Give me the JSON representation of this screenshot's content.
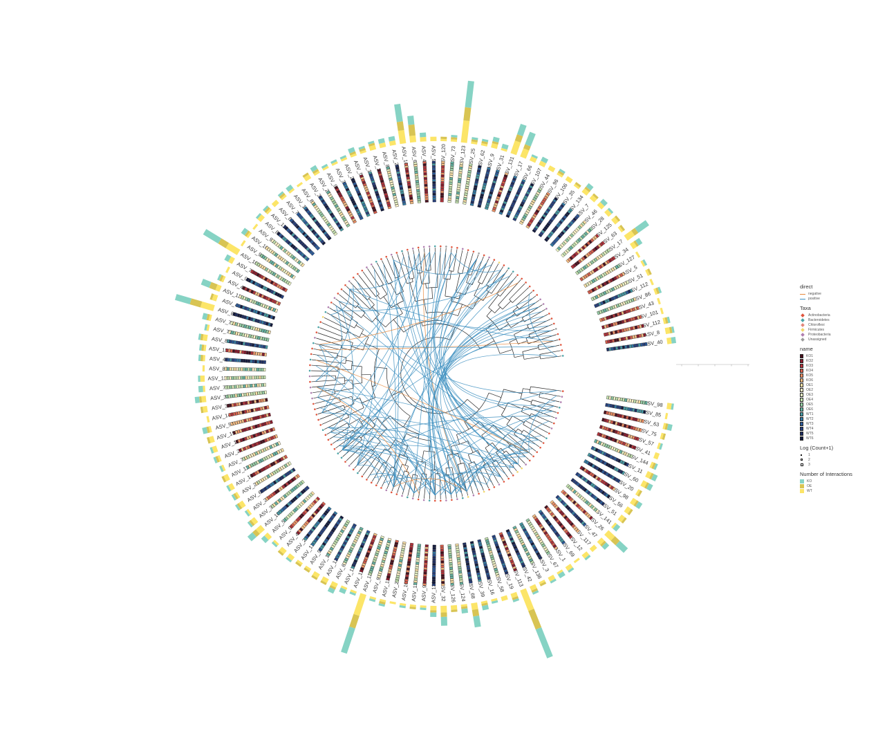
{
  "chart_data": {
    "type": "circular-phylogenetic-tree",
    "title": "",
    "tips": [
      "ASV_40",
      "ASV_8",
      "ASV_112",
      "ASV_101",
      "ASV_43",
      "ASV_86",
      "ASV_112",
      "ASV_51",
      "ASV_5",
      "ASV_127",
      "ASV_34",
      "ASV_17",
      "ASV_63",
      "ASV_125",
      "ASV_28",
      "ASV_46",
      "ASV_7",
      "ASV_134",
      "ASV_35",
      "ASV_106",
      "ASV_96",
      "ASV_44",
      "ASV_107",
      "ASV_66",
      "ASV_17",
      "ASV_131",
      "ASV_31",
      "ASV_9",
      "ASV_62",
      "ASV_25",
      "ASV_123",
      "ASV_73",
      "ASV_120",
      "ASV_59",
      "ASV_47",
      "ASV_61",
      "ASV_109",
      "ASV_25",
      "ASV_87",
      "ASV_2",
      "ASV_14",
      "ASV_53",
      "ASV_29",
      "ASV_30",
      "ASV_97",
      "ASV_27",
      "ASV_36",
      "ASV_84",
      "ASV_15",
      "ASV_74",
      "ASV_86",
      "ASV_118",
      "ASV_81",
      "ASV_90",
      "ASV_100",
      "ASV_91",
      "ASV_109",
      "ASV_73",
      "ASV_90",
      "ASV_49",
      "ASV_133",
      "ASV_4",
      "ASV_82",
      "ASV_76",
      "ASV_70",
      "ASV_80",
      "ASV_153",
      "ASV_48",
      "ASV_89",
      "ASV_119",
      "ASV_77",
      "ASV_33",
      "ASV_37",
      "ASV_147",
      "ASV_55",
      "ASV_152",
      "ASV_16",
      "ASV_24",
      "ASV_71",
      "ASV_114",
      "ASV_103",
      "ASV_21",
      "ASV_65",
      "ASV_23",
      "ASV_38",
      "ASV_105",
      "ASV_54",
      "ASV_99",
      "ASV_45",
      "ASV_22",
      "ASV_139",
      "ASV_95",
      "ASV_13",
      "ASV_128",
      "ASV_60",
      "ASV_115",
      "ASV_116",
      "ASV_123",
      "ASV_94",
      "ASV_116",
      "ASV_20",
      "ASV_107",
      "ASV_111",
      "ASV_92",
      "ASV_130",
      "ASV_32",
      "ASV_126",
      "ASV_124",
      "ASV_68",
      "ASV_39",
      "ASV_16",
      "ASV_58",
      "ASV_19",
      "ASV_113",
      "ASV_42",
      "ASV_138",
      "ASV_3",
      "ASV_67",
      "ASV_1",
      "ASV_69",
      "ASV_12",
      "ASV_117",
      "ASV_47",
      "ASV_26",
      "ASV_141",
      "ASV_51",
      "ASV_56",
      "ASV_98",
      "ASV_20",
      "ASV_60",
      "ASV_11",
      "ASV_144",
      "ASV_41",
      "ASV_57",
      "ASV_75",
      "ASV_63",
      "ASV_85",
      "ASV_98"
    ],
    "legend": {
      "direct": [
        {
          "label": "negative",
          "color": "#e8873a"
        },
        {
          "label": "positive",
          "color": "#3d8fc0"
        }
      ],
      "Taxa": [
        {
          "label": "Actinobacteria",
          "color": "#e0563e"
        },
        {
          "label": "Bacteroidetes",
          "color": "#4aa3a6"
        },
        {
          "label": "Chloroflexi",
          "color": "#e2867a"
        },
        {
          "label": "Firmicutes",
          "color": "#f2d66a"
        },
        {
          "label": "Proteobacteria",
          "color": "#b07fb0"
        },
        {
          "label": "Unassigned",
          "color": "#9c9c9c"
        }
      ],
      "name": [
        {
          "label": "KO1",
          "color": "#4a0f1d"
        },
        {
          "label": "KO2",
          "color": "#8c1a2c"
        },
        {
          "label": "KO3",
          "color": "#b7323a"
        },
        {
          "label": "KO4",
          "color": "#d95e4c"
        },
        {
          "label": "KO5",
          "color": "#ee8f64"
        },
        {
          "label": "KO6",
          "color": "#f6bd84"
        },
        {
          "label": "OE1",
          "color": "#fae1a6"
        },
        {
          "label": "OE2",
          "color": "#fdf3c8"
        },
        {
          "label": "OE3",
          "color": "#eaf4c5"
        },
        {
          "label": "OE4",
          "color": "#c4e3b0"
        },
        {
          "label": "OE5",
          "color": "#97cfa7"
        },
        {
          "label": "OE6",
          "color": "#67b7a5"
        },
        {
          "label": "WT1",
          "color": "#469aa6"
        },
        {
          "label": "WT2",
          "color": "#3179a6"
        },
        {
          "label": "WT3",
          "color": "#2a5a9c"
        },
        {
          "label": "WT4",
          "color": "#243f80"
        },
        {
          "label": "WT5",
          "color": "#1d2d63"
        },
        {
          "label": "WT6",
          "color": "#121a3f"
        }
      ],
      "Log_Count": {
        "title": "Log (Count+1)",
        "levels": [
          "1",
          "2",
          "3"
        ]
      },
      "interactions": {
        "title": "Number of Interactions",
        "groups": [
          {
            "label": "KO",
            "color": "#86d3c4"
          },
          {
            "label": "OE",
            "color": "#d8c453"
          },
          {
            "label": "WT",
            "color": "#fce568"
          }
        ]
      }
    },
    "interaction_counts": {
      "ASV_109": [
        8,
        4,
        6
      ],
      "ASV_123": [
        12,
        6,
        10
      ],
      "ASV_131": [
        5,
        3,
        6
      ],
      "ASV_61": [
        4,
        5,
        3
      ],
      "ASV_17": [
        6,
        2,
        4
      ],
      "ASV_82": [
        7,
        5,
        6
      ],
      "ASV_133": [
        4,
        3,
        2
      ],
      "ASV_113": [
        14,
        9,
        10
      ],
      "ASV_26": [
        5,
        3,
        4
      ],
      "ASV_68": [
        5,
        3,
        3
      ],
      "ASV_105": [
        3,
        2,
        3
      ],
      "ASV_32": [
        4,
        2,
        3
      ]
    }
  }
}
